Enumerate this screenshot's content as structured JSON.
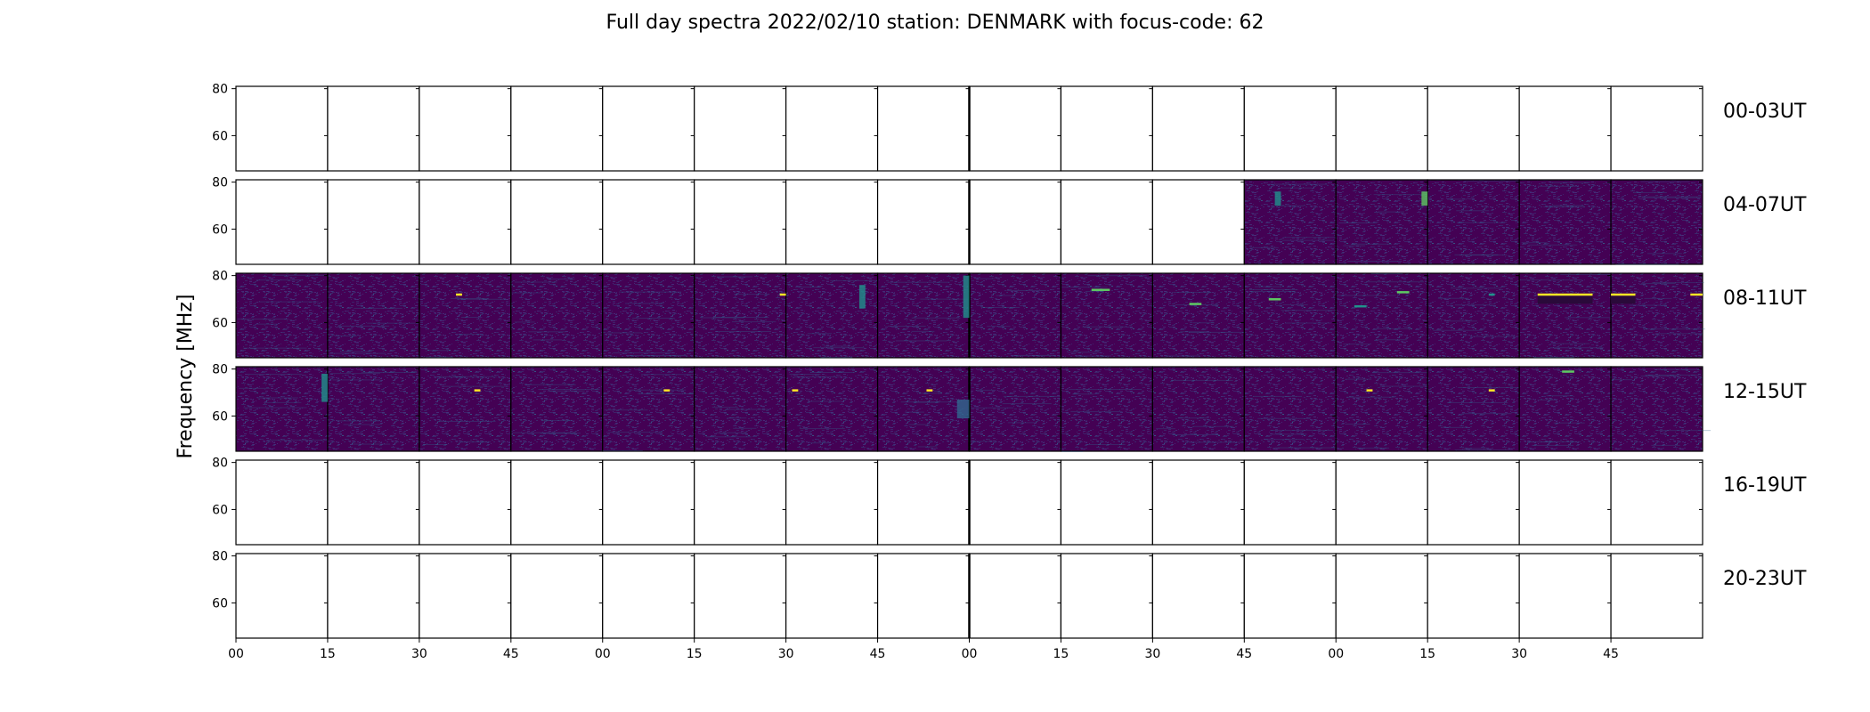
{
  "chart_data": {
    "type": "heatmap",
    "title": "Full day spectra 2022/02/10 station: DENMARK with focus-code: 62",
    "ylabel": "Frequency [MHz]",
    "xlabel": "",
    "ylim": [
      45,
      81
    ],
    "y_ticks": [
      60,
      80
    ],
    "y_tick_labels": [
      "60",
      "80"
    ],
    "x_tick_labels": [
      "00",
      "15",
      "30",
      "45",
      "00",
      "15",
      "30",
      "45",
      "00",
      "15",
      "30",
      "45",
      "00",
      "15",
      "30",
      "45"
    ],
    "panels_per_row": 16,
    "minutes_per_panel": 15,
    "grid": false,
    "colormap": {
      "background": "#440154",
      "noise_low": "#3b2a6e",
      "noise_mid": "#31688e",
      "medium": "#21918c",
      "high": "#5ec962",
      "peak": "#fde725"
    },
    "rows": [
      {
        "label": "00-03UT",
        "panels_with_data": []
      },
      {
        "label": "04-07UT",
        "panels_with_data": [
          11,
          12,
          13,
          14,
          15
        ]
      },
      {
        "label": "08-11UT",
        "panels_with_data": [
          0,
          1,
          2,
          3,
          4,
          5,
          6,
          7,
          8,
          9,
          10,
          11,
          12,
          13,
          14,
          15
        ]
      },
      {
        "label": "12-15UT",
        "panels_with_data": [
          0,
          1,
          2,
          3,
          4,
          5,
          6,
          7,
          8,
          9,
          10,
          11,
          12,
          13,
          14,
          15
        ]
      },
      {
        "label": "16-19UT",
        "panels_with_data": []
      },
      {
        "label": "20-23UT",
        "panels_with_data": []
      }
    ],
    "notable_features": [
      {
        "row": 2,
        "panel": 14,
        "start_minute": 3,
        "end_minute": 12,
        "freq_low": 68,
        "freq_high": 72,
        "kind": "block"
      },
      {
        "row": 2,
        "panel": 14,
        "start_minute": 3,
        "end_minute": 12,
        "freq": 72,
        "intensity": "peak",
        "kind": "line"
      },
      {
        "row": 2,
        "panel": 15,
        "start_minute": 0,
        "end_minute": 4,
        "freq_low": 68,
        "freq_high": 72,
        "kind": "block"
      },
      {
        "row": 2,
        "panel": 15,
        "start_minute": 0,
        "end_minute": 4,
        "freq": 72,
        "intensity": "peak",
        "kind": "line"
      },
      {
        "row": 2,
        "panel": 15,
        "start_minute": 13,
        "end_minute": 15,
        "freq": 72,
        "intensity": "peak",
        "kind": "line"
      },
      {
        "row": 2,
        "panel": 5,
        "start_minute": 14,
        "end_minute": 15,
        "freq": 72,
        "intensity": "peak",
        "kind": "line"
      },
      {
        "row": 2,
        "panel": 2,
        "start_minute": 6,
        "end_minute": 7,
        "freq": 72,
        "intensity": "peak",
        "kind": "line"
      },
      {
        "row": 2,
        "panel": 9,
        "start_minute": 5,
        "end_minute": 8,
        "freq": 74,
        "intensity": "high",
        "kind": "line"
      },
      {
        "row": 2,
        "panel": 10,
        "start_minute": 6,
        "end_minute": 8,
        "freq": 68,
        "intensity": "high",
        "kind": "line"
      },
      {
        "row": 2,
        "panel": 11,
        "start_minute": 4,
        "end_minute": 6,
        "freq": 70,
        "intensity": "high",
        "kind": "line"
      },
      {
        "row": 2,
        "panel": 12,
        "start_minute": 3,
        "end_minute": 5,
        "freq": 67,
        "intensity": "medium",
        "kind": "line"
      },
      {
        "row": 2,
        "panel": 13,
        "start_minute": 10,
        "end_minute": 11,
        "freq": 72,
        "intensity": "medium",
        "kind": "line"
      },
      {
        "row": 2,
        "panel": 6,
        "start_minute": 12,
        "end_minute": 13,
        "freq_low": 66,
        "freq_high": 76,
        "intensity": "medium",
        "kind": "block"
      },
      {
        "row": 2,
        "panel": 7,
        "start_minute": 14,
        "end_minute": 15,
        "freq_low": 62,
        "freq_high": 80,
        "intensity": "medium",
        "kind": "block"
      },
      {
        "row": 3,
        "panel": 0,
        "start_minute": 14,
        "end_minute": 15,
        "freq_low": 66,
        "freq_high": 78,
        "intensity": "medium",
        "kind": "block"
      },
      {
        "row": 3,
        "panel": 7,
        "start_minute": 13,
        "end_minute": 15,
        "freq_low": 59,
        "freq_high": 67,
        "intensity": "noise_mid",
        "kind": "block"
      },
      {
        "row": 3,
        "panel": 2,
        "start_minute": 9,
        "end_minute": 10,
        "freq": 71,
        "intensity": "peak",
        "kind": "line"
      },
      {
        "row": 3,
        "panel": 4,
        "start_minute": 10,
        "end_minute": 11,
        "freq": 71,
        "intensity": "peak",
        "kind": "line"
      },
      {
        "row": 3,
        "panel": 6,
        "start_minute": 1,
        "end_minute": 2,
        "freq": 71,
        "intensity": "peak",
        "kind": "line"
      },
      {
        "row": 3,
        "panel": 7,
        "start_minute": 8,
        "end_minute": 9,
        "freq": 71,
        "intensity": "peak",
        "kind": "line"
      },
      {
        "row": 3,
        "panel": 12,
        "start_minute": 5,
        "end_minute": 6,
        "freq": 71,
        "intensity": "peak",
        "kind": "line"
      },
      {
        "row": 3,
        "panel": 13,
        "start_minute": 10,
        "end_minute": 11,
        "freq": 71,
        "intensity": "peak",
        "kind": "line"
      },
      {
        "row": 3,
        "panel": 14,
        "start_minute": 7,
        "end_minute": 9,
        "freq": 79,
        "intensity": "high",
        "kind": "line"
      },
      {
        "row": 2,
        "panel": 12,
        "start_minute": 10,
        "end_minute": 12,
        "freq": 73,
        "intensity": "high",
        "kind": "line"
      },
      {
        "row": 1,
        "panel": 12,
        "start_minute": 14,
        "end_minute": 15,
        "freq_low": 70,
        "freq_high": 76,
        "intensity": "high",
        "kind": "block"
      },
      {
        "row": 1,
        "panel": 11,
        "start_minute": 5,
        "end_minute": 6,
        "freq_low": 70,
        "freq_high": 76,
        "intensity": "medium",
        "kind": "block"
      }
    ]
  }
}
